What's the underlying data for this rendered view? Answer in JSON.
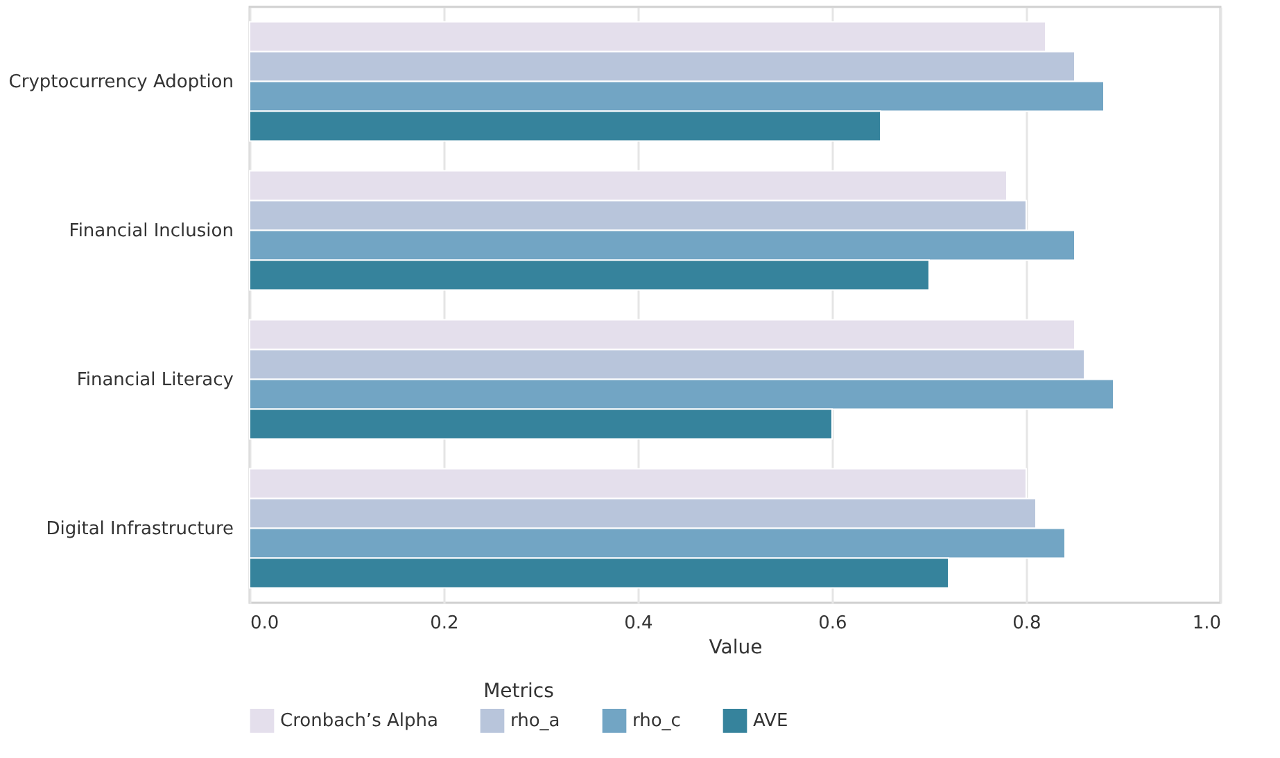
{
  "chart_data": {
    "type": "bar",
    "orientation": "horizontal",
    "xlabel": "Value",
    "legend_title": "Metrics",
    "legend": "bottom",
    "grid": "x",
    "categories": [
      "Cryptocurrency Adoption",
      "Financial Inclusion",
      "Financial Literacy",
      "Digital Infrastructure"
    ],
    "series": [
      {
        "name": "Cronbach’s Alpha",
        "color": "#e4dfec",
        "values": [
          0.82,
          0.78,
          0.85,
          0.8
        ]
      },
      {
        "name": "rho_a",
        "color": "#b8c5db",
        "values": [
          0.85,
          0.8,
          0.86,
          0.81
        ]
      },
      {
        "name": "rho_c",
        "color": "#72a5c4",
        "values": [
          0.88,
          0.85,
          0.89,
          0.84
        ]
      },
      {
        "name": "AVE",
        "color": "#36839c",
        "values": [
          0.65,
          0.7,
          0.6,
          0.72
        ]
      }
    ],
    "xlim": [
      0.0,
      1.0
    ],
    "xticks": [
      {
        "value": 0,
        "label": "0.0"
      },
      0.2,
      0.4,
      0.6,
      0.8,
      {
        "value": 1,
        "label": "1.0"
      }
    ]
  }
}
